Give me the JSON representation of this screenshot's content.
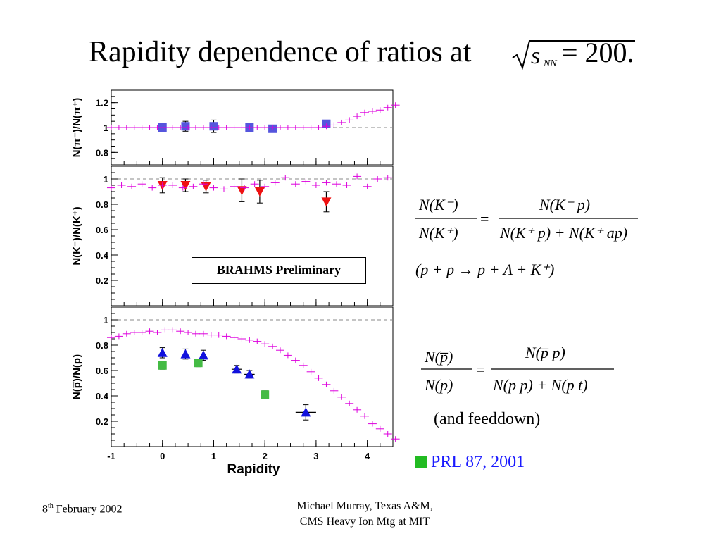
{
  "slide": {
    "title": "Rapidity dependence of ratios at",
    "sqrt_formula": {
      "symbol": "s",
      "subscript": "NN",
      "equals_value": "= 200."
    },
    "brahms_label": "BRAHMS Preliminary",
    "feeddown_note": "(and feeddown)",
    "prl_reference": "PRL 87, 2001",
    "footer_date_day": "8",
    "footer_date_sup": "th",
    "footer_date_rest": " February 2002",
    "footer_author_line1": "Michael Murray, Texas A&M,",
    "footer_author_line2": "CMS Heavy Ion Mtg at MIT",
    "formula_kaon": {
      "lhs_num": "N(K⁻)",
      "lhs_den": "N(K⁺)",
      "rhs_num": "N(K⁻ p)",
      "rhs_den": "N(K⁺ p) + N(K⁺ ap)",
      "reaction": "(p + p → p + Λ + K⁺)"
    },
    "formula_proton": {
      "lhs_num": "N(p̅)",
      "lhs_den": "N(p)",
      "rhs_num": "N(p̅ p)",
      "rhs_den": "N(p p) + N(p t)"
    },
    "colors": {
      "curve": "#dd00dd",
      "pion_points": "#5555dd",
      "kaon_points": "#ee1111",
      "proton_triangles": "#1111dd",
      "proton_prl_squares": "#44bb44",
      "prl_text": "#1a1aff"
    }
  },
  "chart_data": [
    {
      "type": "scatter",
      "panel": "top",
      "ylabel": "N(π⁻)/N(π⁺)",
      "ylim": [
        0.7,
        1.3
      ],
      "yticks": [
        "0.8",
        "1",
        "1.2"
      ],
      "ytick_values": [
        0.8,
        1.0,
        1.2
      ],
      "xlim": [
        -1,
        4.5
      ],
      "reference_line": 1.0,
      "series": [
        {
          "marker": "square",
          "color": "#5555dd",
          "x": [
            0.0,
            0.45,
            1.0,
            1.7,
            2.15,
            3.2
          ],
          "y": [
            1.0,
            1.01,
            1.01,
            1.0,
            0.99,
            1.03
          ],
          "yerr": [
            0.02,
            0.04,
            0.05,
            0.02,
            0.02,
            0.02
          ]
        },
        {
          "marker": "cross",
          "color": "#dd00dd",
          "x": [
            -1.0,
            -0.85,
            -0.7,
            -0.55,
            -0.4,
            -0.25,
            -0.1,
            0.05,
            0.2,
            0.35,
            0.5,
            0.65,
            0.8,
            0.95,
            1.1,
            1.25,
            1.4,
            1.55,
            1.7,
            1.85,
            2.0,
            2.15,
            2.3,
            2.45,
            2.6,
            2.75,
            2.9,
            3.05,
            3.2,
            3.35,
            3.5,
            3.65,
            3.8,
            3.95,
            4.1,
            4.25,
            4.4,
            4.55
          ],
          "y": [
            1.0,
            1.0,
            1.0,
            1.0,
            1.0,
            1.0,
            1.0,
            1.0,
            1.0,
            1.0,
            1.0,
            1.0,
            1.0,
            1.0,
            1.0,
            1.0,
            1.0,
            1.0,
            1.0,
            1.0,
            1.0,
            1.0,
            1.0,
            1.0,
            1.0,
            1.0,
            1.0,
            1.0,
            1.01,
            1.02,
            1.04,
            1.06,
            1.09,
            1.12,
            1.13,
            1.14,
            1.16,
            1.18
          ]
        }
      ]
    },
    {
      "type": "scatter",
      "panel": "middle",
      "ylabel": "N(K⁻)/N(K⁺)",
      "ylim": [
        0.0,
        1.1
      ],
      "yticks": [
        "0.2",
        "0.4",
        "0.6",
        "0.8",
        "1"
      ],
      "ytick_values": [
        0.2,
        0.4,
        0.6,
        0.8,
        1.0
      ],
      "xlim": [
        -1,
        4.5
      ],
      "reference_line": 1.0,
      "series": [
        {
          "marker": "triangle-down",
          "color": "#ee1111",
          "x": [
            0.0,
            0.45,
            0.85,
            1.55,
            1.9,
            3.2
          ],
          "y": [
            0.95,
            0.95,
            0.94,
            0.91,
            0.9,
            0.82
          ],
          "yerr": [
            0.06,
            0.05,
            0.05,
            0.09,
            0.09,
            0.08
          ]
        },
        {
          "marker": "cross",
          "color": "#dd00dd",
          "x": [
            -1.0,
            -0.8,
            -0.6,
            -0.4,
            -0.2,
            0.0,
            0.2,
            0.4,
            0.6,
            0.8,
            1.0,
            1.2,
            1.4,
            1.6,
            1.8,
            2.0,
            2.2,
            2.4,
            2.6,
            2.8,
            3.0,
            3.2,
            3.4,
            3.6,
            3.8,
            4.0,
            4.2,
            4.4
          ],
          "y": [
            0.93,
            0.95,
            0.94,
            0.96,
            0.93,
            0.95,
            0.95,
            0.93,
            0.94,
            0.96,
            0.93,
            0.92,
            0.94,
            0.93,
            0.96,
            0.94,
            0.97,
            1.01,
            0.96,
            0.98,
            0.95,
            0.97,
            0.96,
            0.95,
            1.02,
            0.94,
            1.0,
            1.01
          ]
        }
      ]
    },
    {
      "type": "scatter",
      "panel": "bottom",
      "ylabel": "N(p̅)/N(p)",
      "xlabel": "Rapidity",
      "ylim": [
        0.0,
        1.1
      ],
      "yticks": [
        "0.2",
        "0.4",
        "0.6",
        "0.8",
        "1"
      ],
      "ytick_values": [
        0.2,
        0.4,
        0.6,
        0.8,
        1.0
      ],
      "xlim": [
        -1,
        4.5
      ],
      "xticks": [
        "-1",
        "0",
        "1",
        "2",
        "3",
        "4"
      ],
      "xtick_values": [
        -1,
        0,
        1,
        2,
        3,
        4
      ],
      "reference_line": 1.0,
      "series": [
        {
          "marker": "triangle-up",
          "color": "#1111dd",
          "x": [
            0.0,
            0.45,
            0.8,
            1.45,
            1.7,
            2.8
          ],
          "y": [
            0.74,
            0.73,
            0.72,
            0.61,
            0.57,
            0.27
          ],
          "yerr": [
            0.04,
            0.04,
            0.04,
            0.03,
            0.03,
            0.06
          ],
          "xerr": [
            0.0,
            0.0,
            0.0,
            0.1,
            0.1,
            0.2
          ]
        },
        {
          "marker": "square",
          "color": "#44bb44",
          "x": [
            0.0,
            0.7,
            2.0
          ],
          "y": [
            0.64,
            0.66,
            0.41
          ],
          "yerr": [
            0.03,
            0.03,
            0.03
          ]
        },
        {
          "marker": "cross",
          "color": "#dd00dd",
          "x": [
            -1.0,
            -0.85,
            -0.7,
            -0.55,
            -0.4,
            -0.25,
            -0.1,
            0.05,
            0.2,
            0.35,
            0.5,
            0.65,
            0.8,
            0.95,
            1.1,
            1.25,
            1.4,
            1.55,
            1.7,
            1.85,
            2.0,
            2.15,
            2.3,
            2.45,
            2.6,
            2.75,
            2.9,
            3.05,
            3.2,
            3.35,
            3.5,
            3.65,
            3.8,
            3.95,
            4.1,
            4.25,
            4.4,
            4.55
          ],
          "y": [
            0.86,
            0.87,
            0.89,
            0.9,
            0.9,
            0.91,
            0.9,
            0.92,
            0.92,
            0.91,
            0.9,
            0.89,
            0.89,
            0.88,
            0.88,
            0.87,
            0.86,
            0.85,
            0.84,
            0.83,
            0.81,
            0.79,
            0.76,
            0.72,
            0.68,
            0.64,
            0.59,
            0.54,
            0.49,
            0.44,
            0.39,
            0.34,
            0.29,
            0.24,
            0.18,
            0.14,
            0.1,
            0.06
          ]
        }
      ]
    }
  ]
}
